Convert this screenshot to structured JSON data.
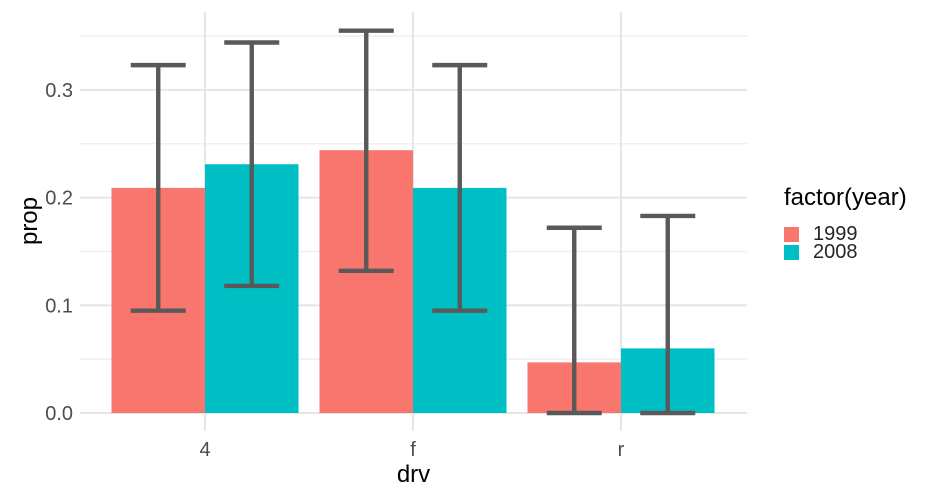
{
  "chart_data": {
    "type": "bar",
    "title": "",
    "xlabel": "drv",
    "ylabel": "prop",
    "categories": [
      "4",
      "f",
      "r"
    ],
    "series": [
      {
        "name": "1999",
        "color": "#F8766D",
        "values": [
          0.209,
          0.244,
          0.047
        ],
        "error_min": [
          0.095,
          0.132,
          0.0
        ],
        "error_max": [
          0.323,
          0.355,
          0.172
        ]
      },
      {
        "name": "2008",
        "color": "#00BFC4",
        "values": [
          0.231,
          0.209,
          0.06
        ],
        "error_min": [
          0.118,
          0.095,
          0.0
        ],
        "error_max": [
          0.344,
          0.323,
          0.183
        ]
      }
    ],
    "legend_title": "factor(year)",
    "legend_position": "right",
    "y_tick_labels": [
      "0.0",
      "0.1",
      "0.2",
      "0.3"
    ],
    "y_tick_values": [
      0.0,
      0.1,
      0.2,
      0.3
    ],
    "y_minor_values": [
      0.05,
      0.15,
      0.25,
      0.35
    ],
    "ylim": [
      -0.017,
      0.373
    ],
    "grid": "on",
    "bar_position": "dodge",
    "error_bar_color": "#595959",
    "grid_major_color": "#E6E6E6",
    "grid_minor_color": "#F0F0F0",
    "tick_label_color": "#4D4D4D"
  }
}
